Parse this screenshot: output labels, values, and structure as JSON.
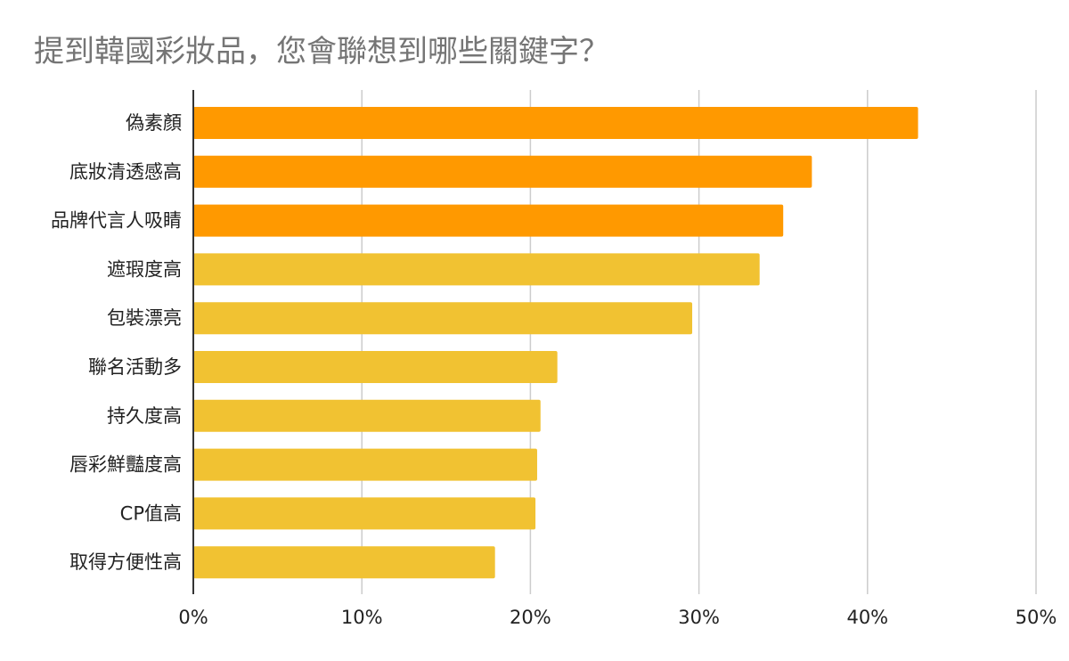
{
  "chart_data": {
    "type": "bar",
    "orientation": "horizontal",
    "title": "提到韓國彩妝品，您會聯想到哪些關鍵字？",
    "categories": [
      "偽素顏",
      "底妝清透感高",
      "品牌代言人吸睛",
      "遮瑕度高",
      "包裝漂亮",
      "聯名活動多",
      "持久度高",
      "唇彩鮮豔度高",
      "CP值高",
      "取得方便性高"
    ],
    "values": [
      43.0,
      36.7,
      35.0,
      33.6,
      29.6,
      21.6,
      20.6,
      20.4,
      20.3,
      17.9
    ],
    "highlight_count": 3,
    "xlim": [
      0,
      50
    ],
    "x_ticks": [
      "0%",
      "10%",
      "20%",
      "30%",
      "40%",
      "50%"
    ],
    "grid": true,
    "colors": {
      "highlight": "#ff9900",
      "default": "#f1c232",
      "grid": "#cccccc",
      "axis": "#333333"
    }
  }
}
